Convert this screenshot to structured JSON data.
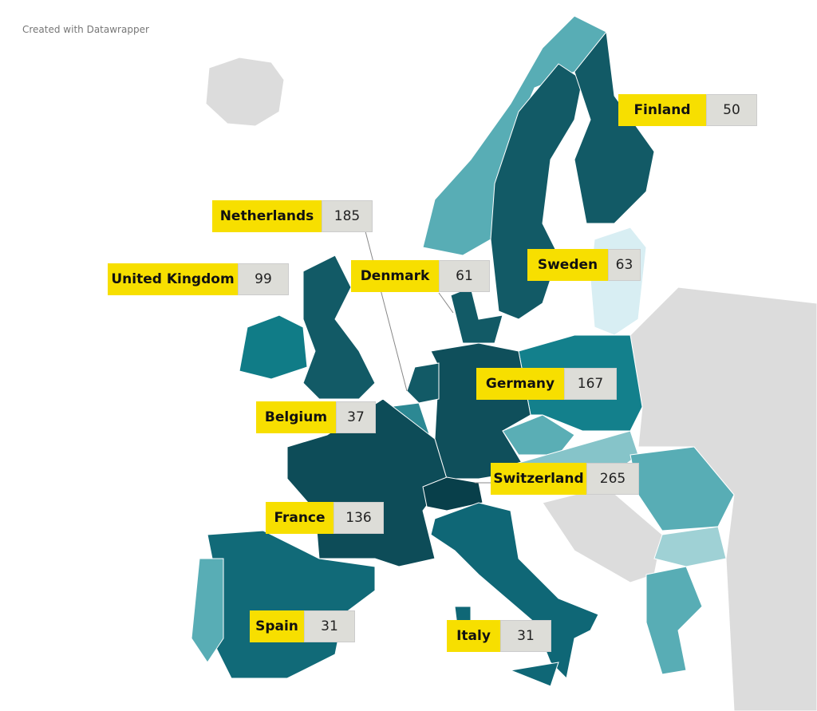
{
  "credit": "Created with Datawrapper",
  "labels": [
    {
      "name": "Finland",
      "value": 50
    },
    {
      "name": "Netherlands",
      "value": 185
    },
    {
      "name": "United Kingdom",
      "value": 99
    },
    {
      "name": "Denmark",
      "value": 61
    },
    {
      "name": "Sweden",
      "value": 63
    },
    {
      "name": "Germany",
      "value": 167
    },
    {
      "name": "Belgium",
      "value": 37
    },
    {
      "name": "Switzerland",
      "value": 265
    },
    {
      "name": "France",
      "value": 136
    },
    {
      "name": "Spain",
      "value": 31
    },
    {
      "name": "Italy",
      "value": 31
    }
  ]
}
